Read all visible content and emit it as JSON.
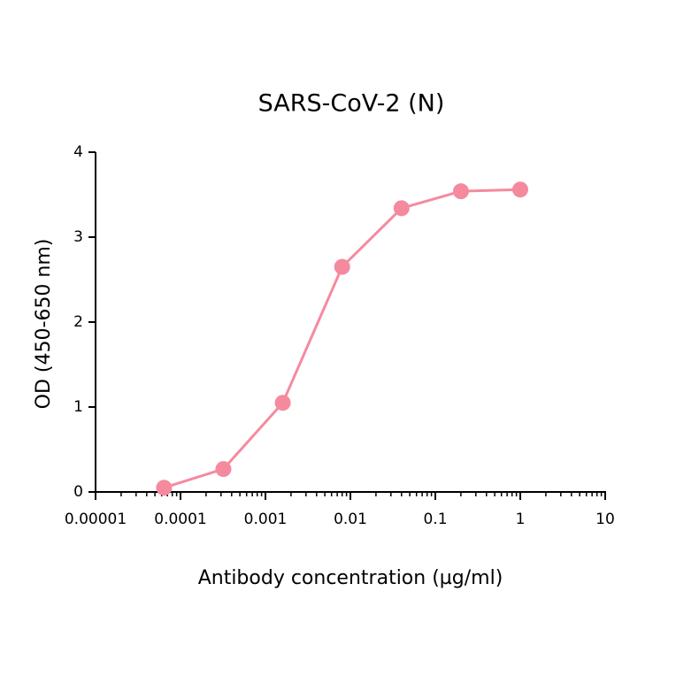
{
  "chart_data": {
    "type": "line",
    "title": "SARS-CoV-2 (N)",
    "x_label": "Antibody concentration (µg/ml)",
    "y_label": "OD (450-650 nm)",
    "x": [
      6.4e-05,
      0.00032,
      0.0016,
      0.008,
      0.04,
      0.2,
      1
    ],
    "series": [
      {
        "name": "SARS-CoV-2 (N)",
        "color": "#f58a9e",
        "values": [
          0.05,
          0.27,
          1.05,
          2.65,
          3.34,
          3.54,
          3.56
        ]
      }
    ],
    "xscale": "log",
    "xlim": [
      1e-05,
      10
    ],
    "xticks": [
      1e-05,
      0.0001,
      0.001,
      0.01,
      0.1,
      1,
      10
    ],
    "ylim": [
      0,
      4
    ],
    "yticks": [
      0,
      1,
      2,
      3,
      4
    ],
    "grid": false
  }
}
